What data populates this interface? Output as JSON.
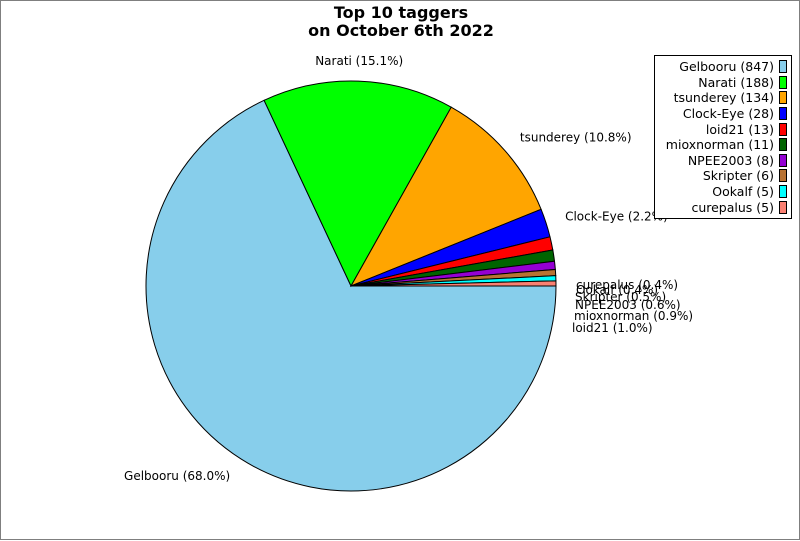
{
  "chart_data": {
    "type": "pie",
    "title_lines": [
      "Top 10 taggers",
      "on October 6th 2022"
    ],
    "slices": [
      {
        "name": "Gelbooru",
        "count": 847,
        "percent_label": "Gelbooru (68.0%)",
        "legend_label": "Gelbooru (847)",
        "color": "#87ceeb"
      },
      {
        "name": "Narati",
        "count": 188,
        "percent_label": "Narati (15.1%)",
        "legend_label": "Narati (188)",
        "color": "#00ff00"
      },
      {
        "name": "tsunderey",
        "count": 134,
        "percent_label": "tsunderey (10.8%)",
        "legend_label": "tsunderey (134)",
        "color": "#ffa500"
      },
      {
        "name": "Clock-Eye",
        "count": 28,
        "percent_label": "Clock-Eye (2.2%)",
        "legend_label": "Clock-Eye (28)",
        "color": "#0000ff"
      },
      {
        "name": "loid21",
        "count": 13,
        "percent_label": "loid21 (1.0%)",
        "legend_label": "loid21 (13)",
        "color": "#ff0000"
      },
      {
        "name": "mioxnorman",
        "count": 11,
        "percent_label": "mioxnorman (0.9%)",
        "legend_label": "mioxnorman (11)",
        "color": "#006400"
      },
      {
        "name": "NPEE2003",
        "count": 8,
        "percent_label": "NPEE2003 (0.6%)",
        "legend_label": "NPEE2003 (8)",
        "color": "#9400d3"
      },
      {
        "name": "Skripter",
        "count": 6,
        "percent_label": "Skripter (0.5%)",
        "legend_label": "Skripter (6)",
        "color": "#b87333"
      },
      {
        "name": "Ookalf",
        "count": 5,
        "percent_label": "Ookalf (0.4%)",
        "legend_label": "Ookalf (5)",
        "color": "#00ffff"
      },
      {
        "name": "curepalus",
        "count": 5,
        "percent_label": "curepalus (0.4%)",
        "legend_label": "curepalus (5)",
        "color": "#fa8072"
      }
    ],
    "legend_position": "top-right",
    "start_angle": "3 o'clock",
    "direction": "clockwise"
  }
}
